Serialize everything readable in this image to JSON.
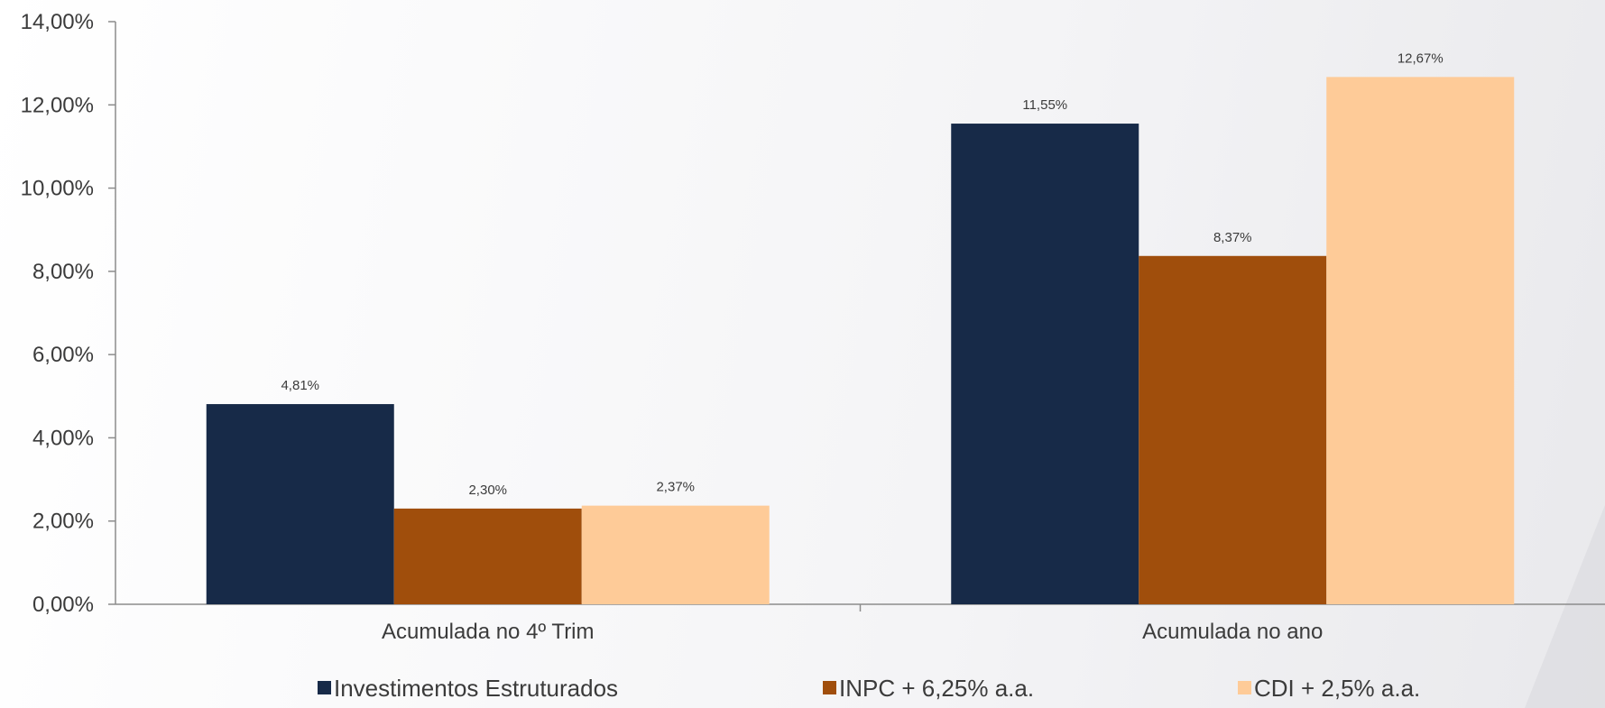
{
  "chart_data": {
    "type": "bar",
    "categories": [
      "Acumulada no 4º Trim",
      "Acumulada no ano"
    ],
    "series": [
      {
        "name": "Investimentos Estruturados",
        "values": [
          4.81,
          11.55
        ],
        "labels": [
          "4,81%",
          "11,55%"
        ],
        "color": "#172a48"
      },
      {
        "name": "INPC + 6,25% a.a.",
        "values": [
          2.3,
          8.37
        ],
        "labels": [
          "2,30%",
          "8,37%"
        ],
        "color": "#a04e0c"
      },
      {
        "name": "CDI + 2,5% a.a.",
        "values": [
          2.37,
          12.67
        ],
        "labels": [
          "2,37%",
          "12,67%"
        ],
        "color": "#fecb98"
      }
    ],
    "yticks": [
      0,
      2,
      4,
      6,
      8,
      10,
      12,
      14
    ],
    "ytick_labels": [
      "0,00%",
      "2,00%",
      "4,00%",
      "6,00%",
      "8,00%",
      "10,00%",
      "12,00%",
      "14,00%"
    ],
    "ylim": [
      0,
      14
    ],
    "grid": false,
    "legend_position": "bottom",
    "title": "",
    "xlabel": "",
    "ylabel": ""
  },
  "colors": {
    "axis": "#8c8c8c",
    "text": "#3b3b3b",
    "decor_shape": "#dcdce0"
  }
}
